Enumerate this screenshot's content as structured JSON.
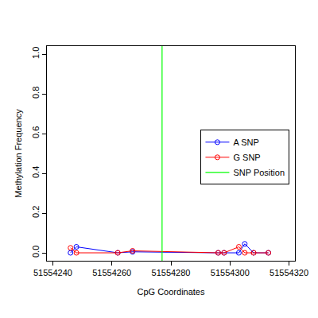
{
  "chart_data": {
    "type": "line",
    "x_label": "CpG Coordinates",
    "y_label": "Methylation Frequency",
    "series": [
      {
        "name": "A SNP",
        "color": "#0000ff",
        "marker": "circle-open",
        "x": [
          51554246,
          51554248,
          51554262,
          51554267,
          51554296,
          51554298,
          51554303,
          51554305,
          51554308,
          51554313
        ],
        "values": [
          0,
          0.03,
          0,
          0.005,
          0,
          0,
          0,
          0.045,
          0,
          0
        ]
      },
      {
        "name": "G SNP",
        "color": "#ff0000",
        "marker": "circle-open",
        "x": [
          51554246,
          51554248,
          51554262,
          51554267,
          51554296,
          51554298,
          51554303,
          51554305,
          51554308,
          51554313
        ],
        "values": [
          0.025,
          0,
          0,
          0.01,
          0,
          0,
          0.03,
          0,
          0,
          0
        ]
      },
      {
        "name": "SNP Position",
        "color": "#00ff00",
        "type": "vline",
        "x": 51554277
      }
    ],
    "xlim": [
      51554238,
      51554322
    ],
    "xticks": [
      51554240,
      51554260,
      51554280,
      51554300,
      51554320
    ],
    "ylim": [
      -0.04,
      1.04
    ],
    "yticks": [
      {
        "value": 0,
        "label": "0.0"
      },
      0.2,
      0.4,
      0.6,
      0.8,
      {
        "value": 1,
        "label": "1.0"
      }
    ],
    "grid": false,
    "legend": "right"
  }
}
